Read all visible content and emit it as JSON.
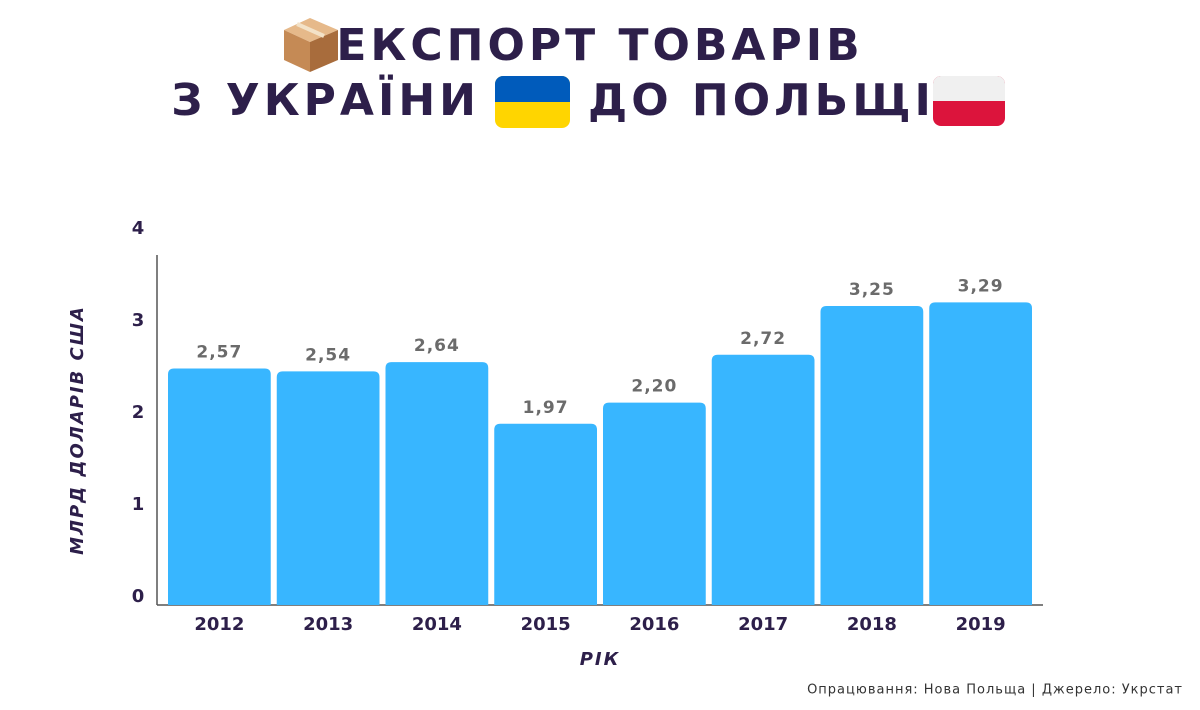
{
  "chart_data": {
    "type": "bar",
    "title_lines": [
      "ЕКСПОРТ ТОВАРІВ",
      "З УКРАЇНИ",
      "ДО ПОЛЬЩІ"
    ],
    "categories": [
      "2012",
      "2013",
      "2014",
      "2015",
      "2016",
      "2017",
      "2018",
      "2019"
    ],
    "values": [
      2.57,
      2.54,
      2.64,
      1.97,
      2.2,
      2.72,
      3.25,
      3.29
    ],
    "value_labels": [
      "2,57",
      "2,54",
      "2,64",
      "1,97",
      "2,20",
      "2,72",
      "3,25",
      "3,29"
    ],
    "color": "#38b6ff",
    "ylim": [
      0,
      4
    ],
    "yticks": [
      0,
      1,
      2,
      3,
      4
    ],
    "y_label": "МЛРД ДОЛАРІВ США",
    "x_label": "РІК",
    "source": "Опрацювання: Нова Польща | Джерело: Укрстат"
  }
}
